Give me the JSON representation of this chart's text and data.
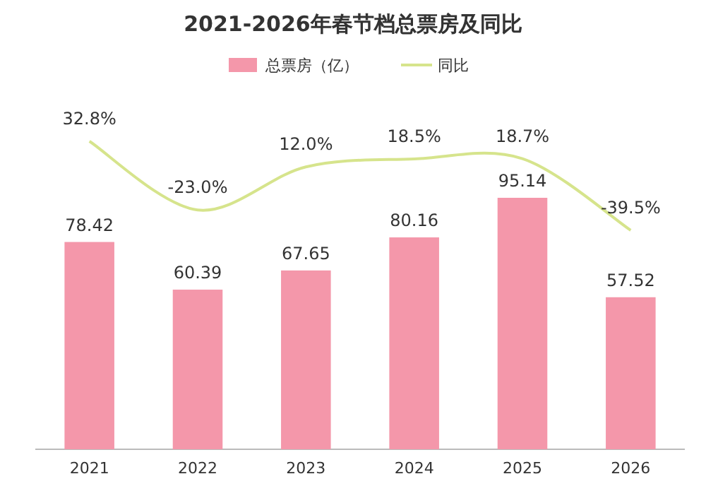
{
  "chart_data": {
    "type": "bar",
    "title": "2021-2026年春节档总票房及同比",
    "categories": [
      "2021",
      "2022",
      "2023",
      "2024",
      "2025",
      "2026"
    ],
    "series": [
      {
        "name": "总票房（亿）",
        "color": "#f497aa",
        "values": [
          78.42,
          60.39,
          67.65,
          80.16,
          95.14,
          57.52
        ],
        "value_labels": [
          "78.42",
          "60.39",
          "67.65",
          "80.16",
          "95.14",
          "57.52"
        ]
      },
      {
        "name": "同比",
        "type": "line",
        "axis": "y2",
        "color": "#d6e48c",
        "values": [
          32.8,
          -23.0,
          12.0,
          18.5,
          18.7,
          -39.5
        ],
        "value_labels": [
          "32.8%",
          "-23.0%",
          "12.0%",
          "18.5%",
          "18.7%",
          "-39.5%"
        ]
      }
    ],
    "legend": "top"
  }
}
